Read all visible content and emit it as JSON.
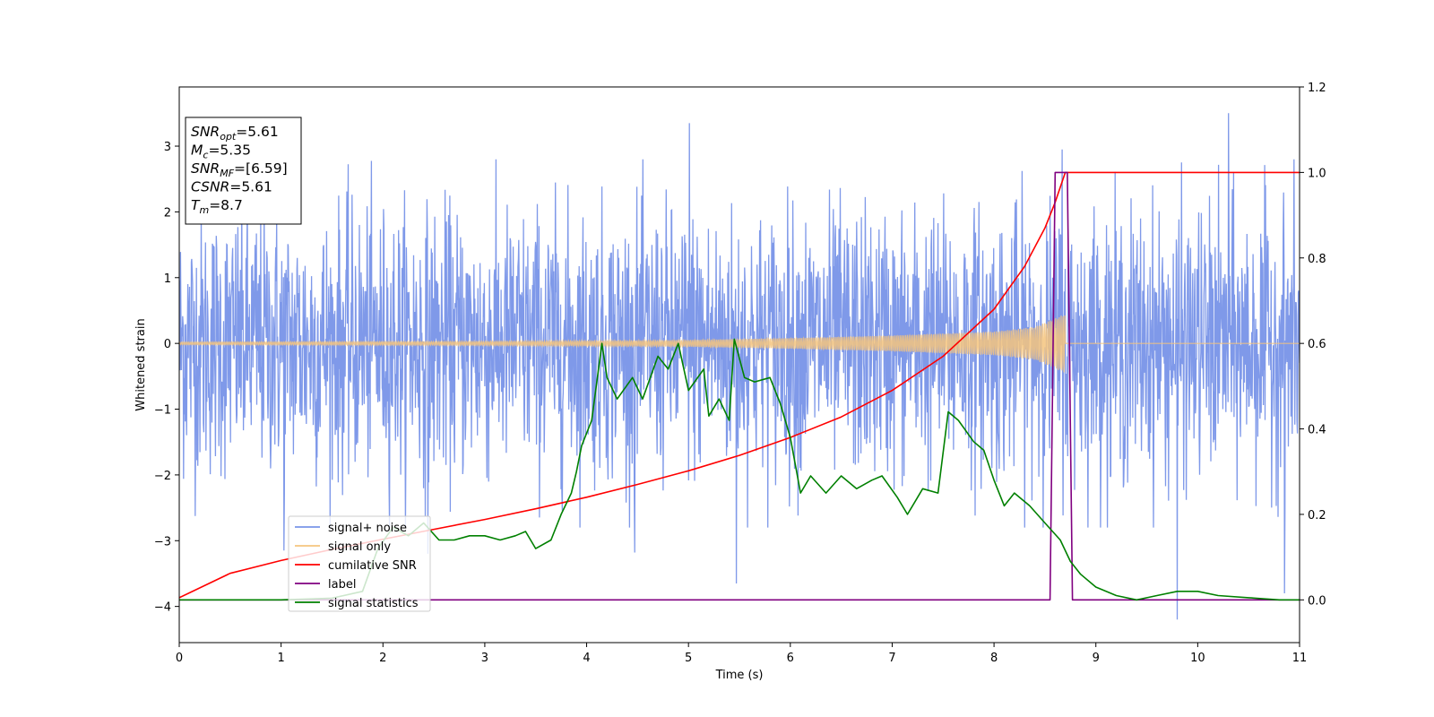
{
  "chart_data": {
    "type": "line",
    "xlabel": "Time (s)",
    "ylabel": "Whitened strain",
    "xlim": [
      0,
      11
    ],
    "ylim": [
      -4.55,
      3.9
    ],
    "y2lim": [
      -0.1,
      1.2
    ],
    "xticks": [
      "0",
      "1",
      "2",
      "3",
      "4",
      "5",
      "6",
      "7",
      "8",
      "9",
      "10",
      "11"
    ],
    "yticks": [
      "3",
      "2",
      "1",
      "0",
      "−1",
      "−2",
      "−3",
      "−4"
    ],
    "y2ticks": [
      "1.2",
      "1.0",
      "0.8",
      "0.6",
      "0.4",
      "0.2",
      "0.0"
    ],
    "grid": false,
    "legend_position": "lower-left",
    "info_box": {
      "position": "upper-left",
      "lines": [
        {
          "name": "SNR",
          "sub": "opt",
          "text": "=5.61"
        },
        {
          "name": "M",
          "sub": "c",
          "text": "=5.35"
        },
        {
          "name": "SNR",
          "sub": "MF",
          "text": "=[6.59]"
        },
        {
          "name": "CSNR",
          "sub": "",
          "text": "=5.61"
        },
        {
          "name": "T",
          "sub": "m",
          "text": "=8.7"
        }
      ]
    },
    "series": [
      {
        "name": "signal+ noise",
        "axis": "left",
        "color": "#7894e8",
        "kind": "noise",
        "x_range": [
          0,
          11
        ],
        "typical_amplitude": 1.0,
        "extreme_values": [
          {
            "x": 1.03,
            "y": -3.15
          },
          {
            "x": 2.44,
            "y": -3.2
          },
          {
            "x": 4.47,
            "y": -3.18
          },
          {
            "x": 5.01,
            "y": 3.35
          },
          {
            "x": 5.47,
            "y": -3.65
          },
          {
            "x": 8.67,
            "y": 2.95
          },
          {
            "x": 9.8,
            "y": -4.2
          },
          {
            "x": 10.3,
            "y": 3.5
          },
          {
            "x": 10.85,
            "y": -3.8
          }
        ]
      },
      {
        "name": "signal only",
        "axis": "left",
        "color": "#f5c47e",
        "kind": "chirp",
        "x_range": [
          0,
          8.7
        ],
        "envelope": {
          "x": [
            0,
            3,
            5,
            6,
            7,
            8,
            8.4,
            8.7
          ],
          "y": [
            0.02,
            0.03,
            0.05,
            0.08,
            0.12,
            0.18,
            0.25,
            0.45
          ]
        }
      },
      {
        "name": "cumilative SNR",
        "axis": "right",
        "color": "#ff0000",
        "x": [
          0,
          0.5,
          1,
          1.5,
          2,
          2.5,
          3,
          3.5,
          4,
          4.5,
          5,
          5.5,
          6,
          6.5,
          7,
          7.5,
          8,
          8.3,
          8.5,
          8.6,
          8.7,
          11
        ],
        "y": [
          0.005,
          0.062,
          0.092,
          0.118,
          0.142,
          0.165,
          0.188,
          0.213,
          0.24,
          0.27,
          0.302,
          0.338,
          0.38,
          0.428,
          0.49,
          0.57,
          0.68,
          0.78,
          0.87,
          0.93,
          1.0,
          1.0
        ]
      },
      {
        "name": "label",
        "axis": "right",
        "color": "#800080",
        "x": [
          0,
          8.55,
          8.6,
          8.72,
          8.77,
          11
        ],
        "y": [
          0,
          0,
          1.0,
          1.0,
          0,
          0
        ]
      },
      {
        "name": "signal statistics",
        "axis": "right",
        "color": "#008000",
        "x": [
          0,
          0.5,
          1,
          1.5,
          1.8,
          1.95,
          2.1,
          2.25,
          2.4,
          2.55,
          2.7,
          2.85,
          3.0,
          3.15,
          3.3,
          3.4,
          3.5,
          3.65,
          3.75,
          3.85,
          3.9,
          3.95,
          4.05,
          4.15,
          4.2,
          4.3,
          4.45,
          4.55,
          4.7,
          4.8,
          4.9,
          5.0,
          5.15,
          5.2,
          5.3,
          5.4,
          5.45,
          5.55,
          5.65,
          5.8,
          5.9,
          6.0,
          6.1,
          6.2,
          6.35,
          6.5,
          6.65,
          6.8,
          6.9,
          7.05,
          7.15,
          7.3,
          7.45,
          7.55,
          7.65,
          7.8,
          7.9,
          8.0,
          8.1,
          8.2,
          8.35,
          8.5,
          8.65,
          8.75,
          8.85,
          9.0,
          9.2,
          9.4,
          9.6,
          9.8,
          10.0,
          10.2,
          10.5,
          10.8,
          11.0
        ],
        "y": [
          0,
          0,
          0.0,
          0.004,
          0.02,
          0.12,
          0.17,
          0.15,
          0.18,
          0.14,
          0.14,
          0.15,
          0.15,
          0.14,
          0.15,
          0.16,
          0.12,
          0.14,
          0.2,
          0.25,
          0.3,
          0.36,
          0.42,
          0.6,
          0.52,
          0.47,
          0.52,
          0.47,
          0.57,
          0.54,
          0.6,
          0.49,
          0.54,
          0.43,
          0.47,
          0.42,
          0.61,
          0.52,
          0.51,
          0.52,
          0.46,
          0.38,
          0.25,
          0.29,
          0.25,
          0.29,
          0.26,
          0.28,
          0.29,
          0.24,
          0.2,
          0.26,
          0.25,
          0.44,
          0.42,
          0.37,
          0.35,
          0.28,
          0.22,
          0.25,
          0.22,
          0.18,
          0.14,
          0.09,
          0.06,
          0.03,
          0.01,
          0.0,
          0.01,
          0.02,
          0.02,
          0.01,
          0.005,
          0.0,
          0.0
        ]
      }
    ]
  }
}
